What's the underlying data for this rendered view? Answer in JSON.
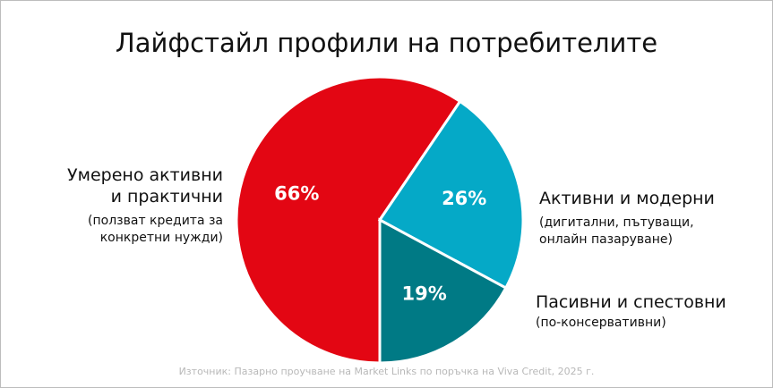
{
  "chart_data": {
    "type": "pie",
    "title": "Лайфстайл профили на потребителите",
    "categories": [
      "Умерено активни и практични",
      "Активни и модерни",
      "Пасивни и спестовни"
    ],
    "notes": [
      "(ползват кредита за конкретни нужди)",
      "(дигитални, пътуващи, онлайн пазаруване)",
      "(по-консервативни)"
    ],
    "values": [
      66,
      26,
      19
    ],
    "value_labels": [
      "66%",
      "26%",
      "19%"
    ],
    "colors": [
      "#e30613",
      "#05a9c7",
      "#007a85"
    ],
    "source": "Източник: Пазарно проучване на Market Links по поръчка на Viva Credit, 2025 г."
  }
}
